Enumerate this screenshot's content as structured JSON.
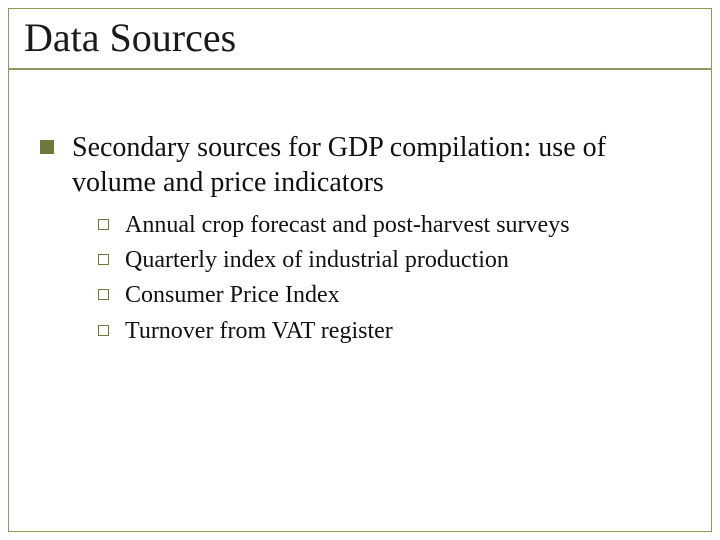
{
  "slide": {
    "title": "Data Sources",
    "title_color": "#1a1a1a",
    "title_fontsize": 40,
    "accent_color": "#8a9a5b",
    "bullet_fill_color": "#6b7a3a",
    "background_color": "#ffffff",
    "body_font": "Times New Roman",
    "main": {
      "text": "Secondary sources for GDP compilation: use of volume and price indicators",
      "fontsize": 28,
      "bullet_type": "filled-square"
    },
    "subitems": [
      {
        "text": "Annual crop forecast and post-harvest surveys"
      },
      {
        "text": "Quarterly index of industrial production"
      },
      {
        "text": "Consumer Price Index"
      },
      {
        "text": "Turnover from VAT register"
      }
    ],
    "sub_fontsize": 24,
    "sub_bullet_type": "hollow-square"
  }
}
